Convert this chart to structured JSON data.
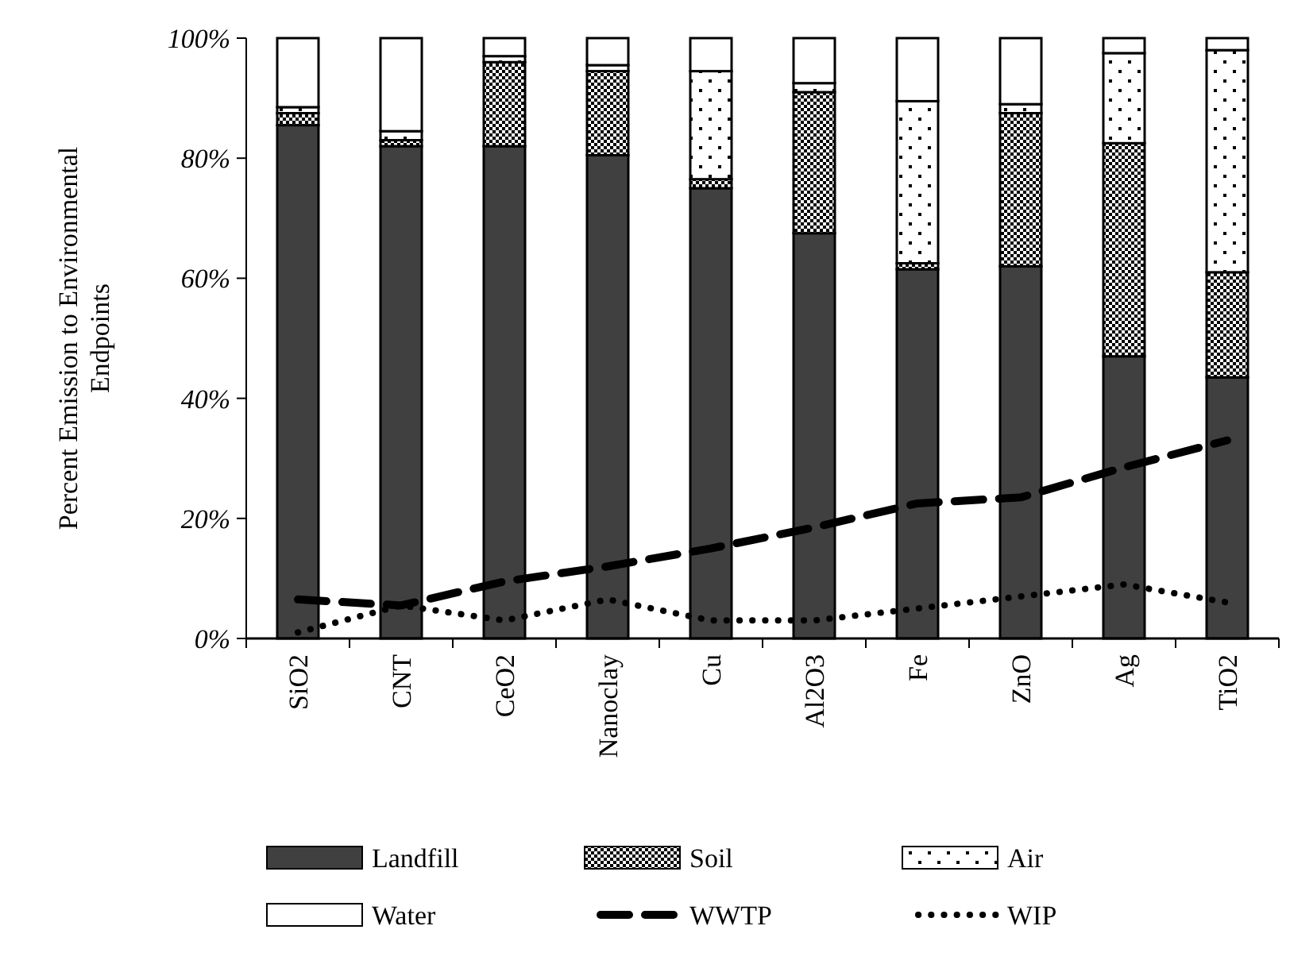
{
  "chart_data": {
    "type": "bar",
    "stacked": true,
    "ylabel": "Percent Emission to Environmental Endpoints",
    "categories": [
      "SiO2",
      "CNT",
      "CeO2",
      "Nanoclay",
      "Cu",
      "Al2O3",
      "Fe",
      "ZnO",
      "Ag",
      "TiO2"
    ],
    "series": [
      {
        "name": "Landfill",
        "color": "#404040",
        "values": [
          85.5,
          82,
          82,
          80.5,
          75,
          67.5,
          61.5,
          62,
          47,
          43.5
        ]
      },
      {
        "name": "Soil",
        "color": "#000000",
        "values": [
          2,
          1,
          14,
          14,
          1.5,
          23.5,
          1,
          25.5,
          35.5,
          17.5
        ]
      },
      {
        "name": "Air",
        "color": "#000000",
        "values": [
          1,
          1.5,
          1,
          1,
          18,
          1.5,
          27,
          1.5,
          15,
          37
        ]
      },
      {
        "name": "Water",
        "color": "#ffffff",
        "values": [
          11.5,
          15.5,
          3,
          4.5,
          5.5,
          7.5,
          10.5,
          11,
          2.5,
          2
        ]
      },
      {
        "name": "WWTP",
        "type": "line",
        "color": "#000000",
        "line_style": "dashed",
        "marker": "none",
        "values": [
          6.5,
          5.5,
          9.5,
          12,
          15,
          18.5,
          22.5,
          23.5,
          28.5,
          33
        ]
      },
      {
        "name": "WIP",
        "type": "line",
        "color": "#000000",
        "line_style": "dotted",
        "marker": "none",
        "values": [
          1,
          5.5,
          3,
          6.5,
          3,
          3,
          5,
          7,
          9,
          6
        ]
      }
    ],
    "ylim": [
      0,
      100
    ],
    "yticks": [
      {
        "value": 0,
        "label": "0%"
      },
      {
        "value": 20,
        "label": "20%"
      },
      {
        "value": 40,
        "label": "40%"
      },
      {
        "value": 60,
        "label": "60%"
      },
      {
        "value": 80,
        "label": "80%"
      },
      {
        "value": 100,
        "label": "100%"
      }
    ],
    "grid": false,
    "legend": "bottom"
  }
}
